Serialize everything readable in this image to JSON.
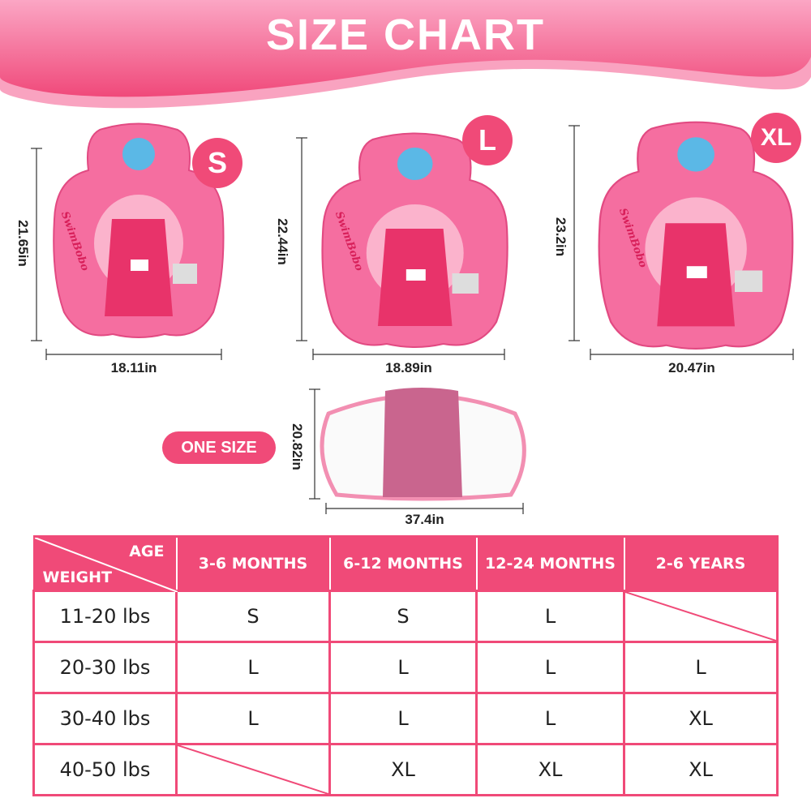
{
  "title": "SIZE CHART",
  "colors": {
    "accent": "#f04a78",
    "header_light": "#f9a3c0"
  },
  "products": [
    {
      "size": "S",
      "height": "21.65in",
      "width": "18.11in",
      "brand": "SwimBobo"
    },
    {
      "size": "L",
      "height": "22.44in",
      "width": "18.89in",
      "brand": "SwimBobo"
    },
    {
      "size": "XL",
      "height": "23.2in",
      "width": "20.47in",
      "brand": "SwimBobo"
    }
  ],
  "canopy": {
    "size": "ONE SIZE",
    "height": "20.82in",
    "width": "37.4in"
  },
  "table": {
    "corner_top": "AGE",
    "corner_bottom": "WEIGHT",
    "columns": [
      "3-6 MONTHS",
      "6-12 MONTHS",
      "12-24 MONTHS",
      "2-6 YEARS"
    ],
    "rows": [
      {
        "weight": "11-20 lbs",
        "cells": [
          "S",
          "S",
          "L",
          ""
        ]
      },
      {
        "weight": "20-30 lbs",
        "cells": [
          "L",
          "L",
          "L",
          "L"
        ]
      },
      {
        "weight": "30-40 lbs",
        "cells": [
          "L",
          "L",
          "L",
          "XL"
        ]
      },
      {
        "weight": "40-50 lbs",
        "cells": [
          "",
          "XL",
          "XL",
          "XL"
        ]
      }
    ]
  }
}
